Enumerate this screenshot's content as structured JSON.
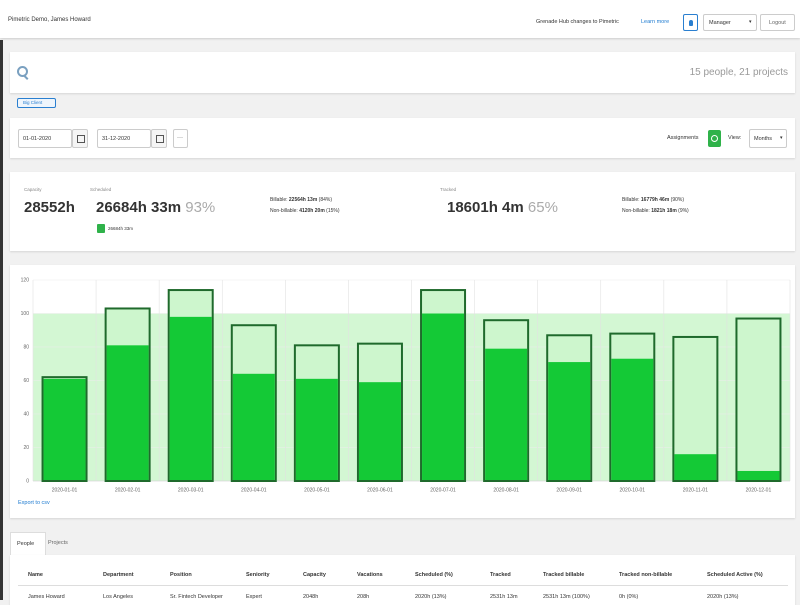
{
  "header": {
    "title": "Pimetric Demo, James Howard",
    "notice": "Grenade Hub changes to Pimetric",
    "notice_link": "Learn more",
    "role": "Manager",
    "logout": "Logout"
  },
  "search": {
    "summary": "15 people, 21 projects",
    "tag": "Big Client"
  },
  "filters": {
    "start_date": "01-01-2020",
    "end_date": "31-12-2020",
    "more": "···",
    "assignments_label": "Assignments",
    "view_label": "View:",
    "view": "Months"
  },
  "stats": {
    "capacity": {
      "label": "Capacity",
      "value": "28552h"
    },
    "scheduled": {
      "label": "Scheduled",
      "value": "26684h 33m",
      "percent": "93%",
      "active": "26684h 33m",
      "billable_label": "Billable:",
      "billable": "22564h 13m",
      "billable_share": "(84%)",
      "non_billable_label": "Non-billable:",
      "non_billable": "4120h 20m",
      "non_billable_share": "(15%)"
    },
    "tracked": {
      "label": "Tracked",
      "value": "18601h 4m",
      "percent": "65%",
      "billable_label": "Billable:",
      "billable": "16779h 46m",
      "billable_share": "(90%)",
      "non_billable_label": "Non-billable:",
      "non_billable": "1821h 18m",
      "non_billable_share": "(9%)"
    }
  },
  "chart_data": {
    "type": "bar",
    "categories": [
      "2020-01-01",
      "2020-02-01",
      "2020-03-01",
      "2020-04-01",
      "2020-05-01",
      "2020-06-01",
      "2020-07-01",
      "2020-08-01",
      "2020-09-01",
      "2020-10-01",
      "2020-11-01",
      "2020-12-01"
    ],
    "series": [
      {
        "color": "#cdf6cd",
        "stroke": "#1f6a2c",
        "values": [
          62,
          103,
          114,
          93,
          81,
          82,
          114,
          96,
          87,
          88,
          86,
          97
        ]
      },
      {
        "color": "#14c936",
        "values": [
          61,
          81,
          98,
          64,
          61,
          59,
          100,
          79,
          71,
          73,
          16,
          6
        ]
      }
    ],
    "capacity": {
      "value": 100,
      "color": "#d3f7d3"
    },
    "ylim": [
      0,
      120
    ],
    "yticks": [
      0,
      20,
      40,
      60,
      80,
      100,
      120
    ],
    "grid": true
  },
  "export_link": "Export to csv",
  "tabs": [
    "People",
    "Projects"
  ],
  "table": {
    "columns": [
      "Name",
      "Department",
      "Position",
      "Seniority",
      "Capacity",
      "Vacations",
      "Scheduled (%)",
      "Tracked",
      "Tracked billable",
      "Tracked non-billable",
      "Scheduled Active (%)"
    ],
    "rows": [
      [
        "James Howard",
        "Los Angeles",
        "Sr. Fintech Developer",
        "Expert",
        "2048h",
        "208h",
        "2020h (13%)",
        "2531h 13m",
        "2531h 13m (100%)",
        "0h (0%)",
        "2020h (13%)"
      ]
    ]
  }
}
